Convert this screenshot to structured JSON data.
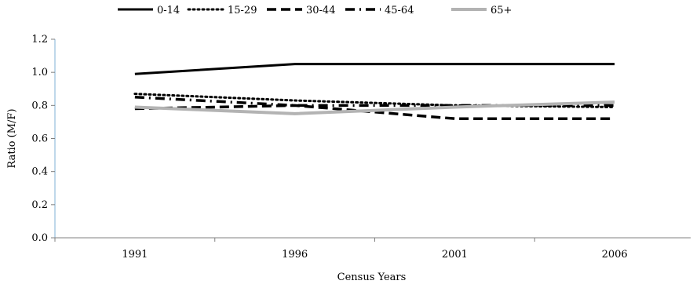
{
  "chart_data": {
    "type": "line",
    "xlabel": "Census Years",
    "ylabel": "Ratio (M/F)",
    "categories": [
      "1991",
      "1996",
      "2001",
      "2006"
    ],
    "ylim": [
      0,
      1.2
    ],
    "yticks": [
      "0.0",
      "0.2",
      "0.4",
      "0.6",
      "0.8",
      "1.0",
      "1.2"
    ],
    "grid": false,
    "legend_position": "top",
    "series": [
      {
        "name": "0-14",
        "values": [
          0.99,
          1.05,
          1.05,
          1.05
        ],
        "color": "#000000",
        "style": "solid"
      },
      {
        "name": "15-29",
        "values": [
          0.87,
          0.83,
          0.8,
          0.79
        ],
        "color": "#000000",
        "style": "dotted"
      },
      {
        "name": "30-44",
        "values": [
          0.78,
          0.8,
          0.72,
          0.72
        ],
        "color": "#000000",
        "style": "dashed"
      },
      {
        "name": "45-64",
        "values": [
          0.85,
          0.8,
          0.8,
          0.8
        ],
        "color": "#000000",
        "style": "dashdot"
      },
      {
        "name": "65+",
        "values": [
          0.79,
          0.75,
          0.79,
          0.82
        ],
        "color": "#b3b3b3",
        "style": "solid"
      }
    ]
  }
}
